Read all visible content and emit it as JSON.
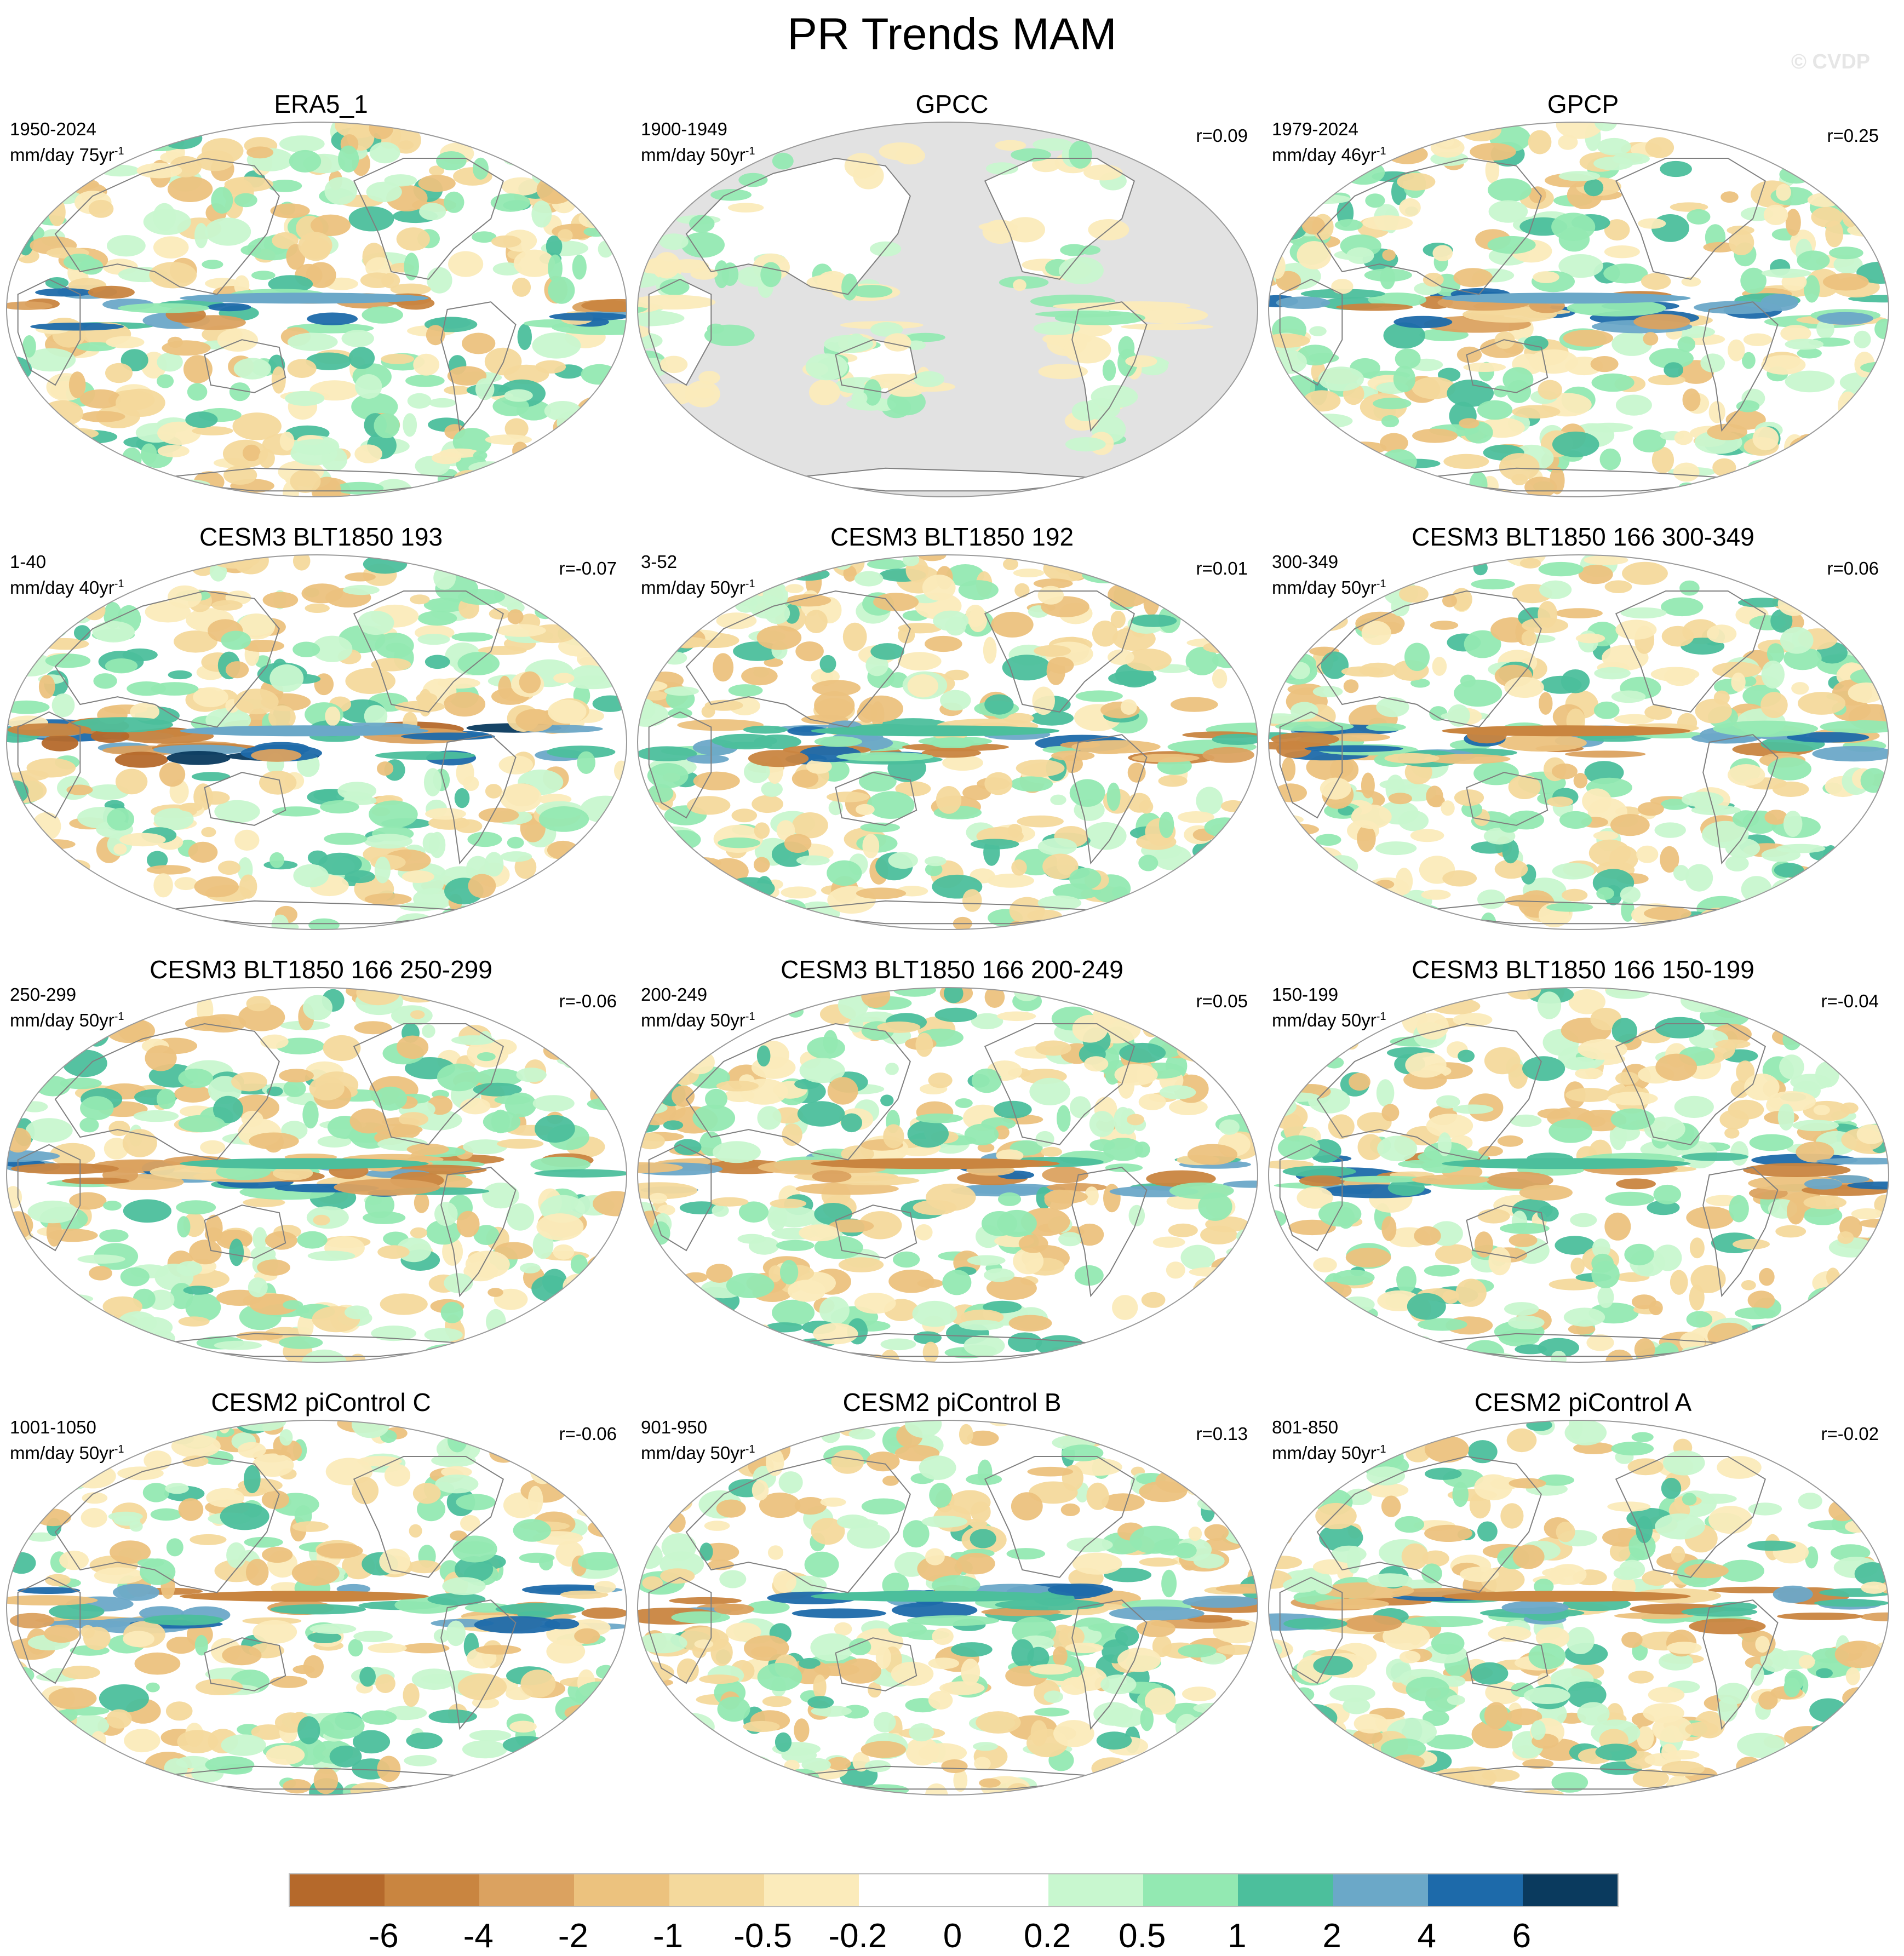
{
  "figure": {
    "title": "PR Trends MAM",
    "watermark": "© CVDP"
  },
  "panels": [
    {
      "title": "ERA5_1",
      "period": "1950-2024",
      "units_main": "mm/day 75yr",
      "units_exp": "-1",
      "corr": "",
      "kind": "era5",
      "mask_land": false
    },
    {
      "title": "GPCC",
      "period": "1900-1949",
      "units_main": "mm/day 50yr",
      "units_exp": "-1",
      "corr": "r=0.09",
      "kind": "gpcc",
      "mask_land": true
    },
    {
      "title": "GPCP",
      "period": "1979-2024",
      "units_main": "mm/day 46yr",
      "units_exp": "-1",
      "corr": "r=0.25",
      "kind": "gpcp",
      "mask_land": false
    },
    {
      "title": "CESM3 BLT1850 193",
      "period": "1-40",
      "units_main": "mm/day 40yr",
      "units_exp": "-1",
      "corr": "r=-0.07",
      "kind": "strong",
      "mask_land": false
    },
    {
      "title": "CESM3 BLT1850 192",
      "period": "3-52",
      "units_main": "mm/day 50yr",
      "units_exp": "-1",
      "corr": "r=0.01",
      "kind": "model",
      "mask_land": false
    },
    {
      "title": "CESM3 BLT1850 166 300-349",
      "period": "300-349",
      "units_main": "mm/day 50yr",
      "units_exp": "-1",
      "corr": "r=0.06",
      "kind": "model",
      "mask_land": false
    },
    {
      "title": "CESM3 BLT1850 166 250-299",
      "period": "250-299",
      "units_main": "mm/day 50yr",
      "units_exp": "-1",
      "corr": "r=-0.06",
      "kind": "model",
      "mask_land": false
    },
    {
      "title": "CESM3 BLT1850 166 200-249",
      "period": "200-249",
      "units_main": "mm/day 50yr",
      "units_exp": "-1",
      "corr": "r=0.05",
      "kind": "model",
      "mask_land": false
    },
    {
      "title": "CESM3 BLT1850 166 150-199",
      "period": "150-199",
      "units_main": "mm/day 50yr",
      "units_exp": "-1",
      "corr": "r=-0.04",
      "kind": "model",
      "mask_land": false
    },
    {
      "title": "CESM2 piControl C",
      "period": "1001-1050",
      "units_main": "mm/day 50yr",
      "units_exp": "-1",
      "corr": "r=-0.06",
      "kind": "model",
      "mask_land": false
    },
    {
      "title": "CESM2 piControl B",
      "period": "901-950",
      "units_main": "mm/day 50yr",
      "units_exp": "-1",
      "corr": "r=0.13",
      "kind": "model",
      "mask_land": false
    },
    {
      "title": "CESM2 piControl A",
      "period": "801-850",
      "units_main": "mm/day 50yr",
      "units_exp": "-1",
      "corr": "r=-0.02",
      "kind": "model",
      "mask_land": false
    }
  ],
  "colorbar": {
    "levels": [
      "-6",
      "-4",
      "-2",
      "-1",
      "-0.5",
      "-0.2",
      "0",
      "0.2",
      "0.5",
      "1",
      "2",
      "4",
      "6"
    ],
    "colors": [
      "#b5692b",
      "#c98540",
      "#dba260",
      "#ecc27e",
      "#f4d99c",
      "#fbebbb",
      "#ffffff",
      "#ffffff",
      "#c8f7cf",
      "#93e9b2",
      "#4cbf9c",
      "#6ba8c8",
      "#1d6aaa",
      "#0a3a5e"
    ],
    "land_mask_color": "#e2e2e2",
    "coast_color": "#7f7f7f"
  }
}
